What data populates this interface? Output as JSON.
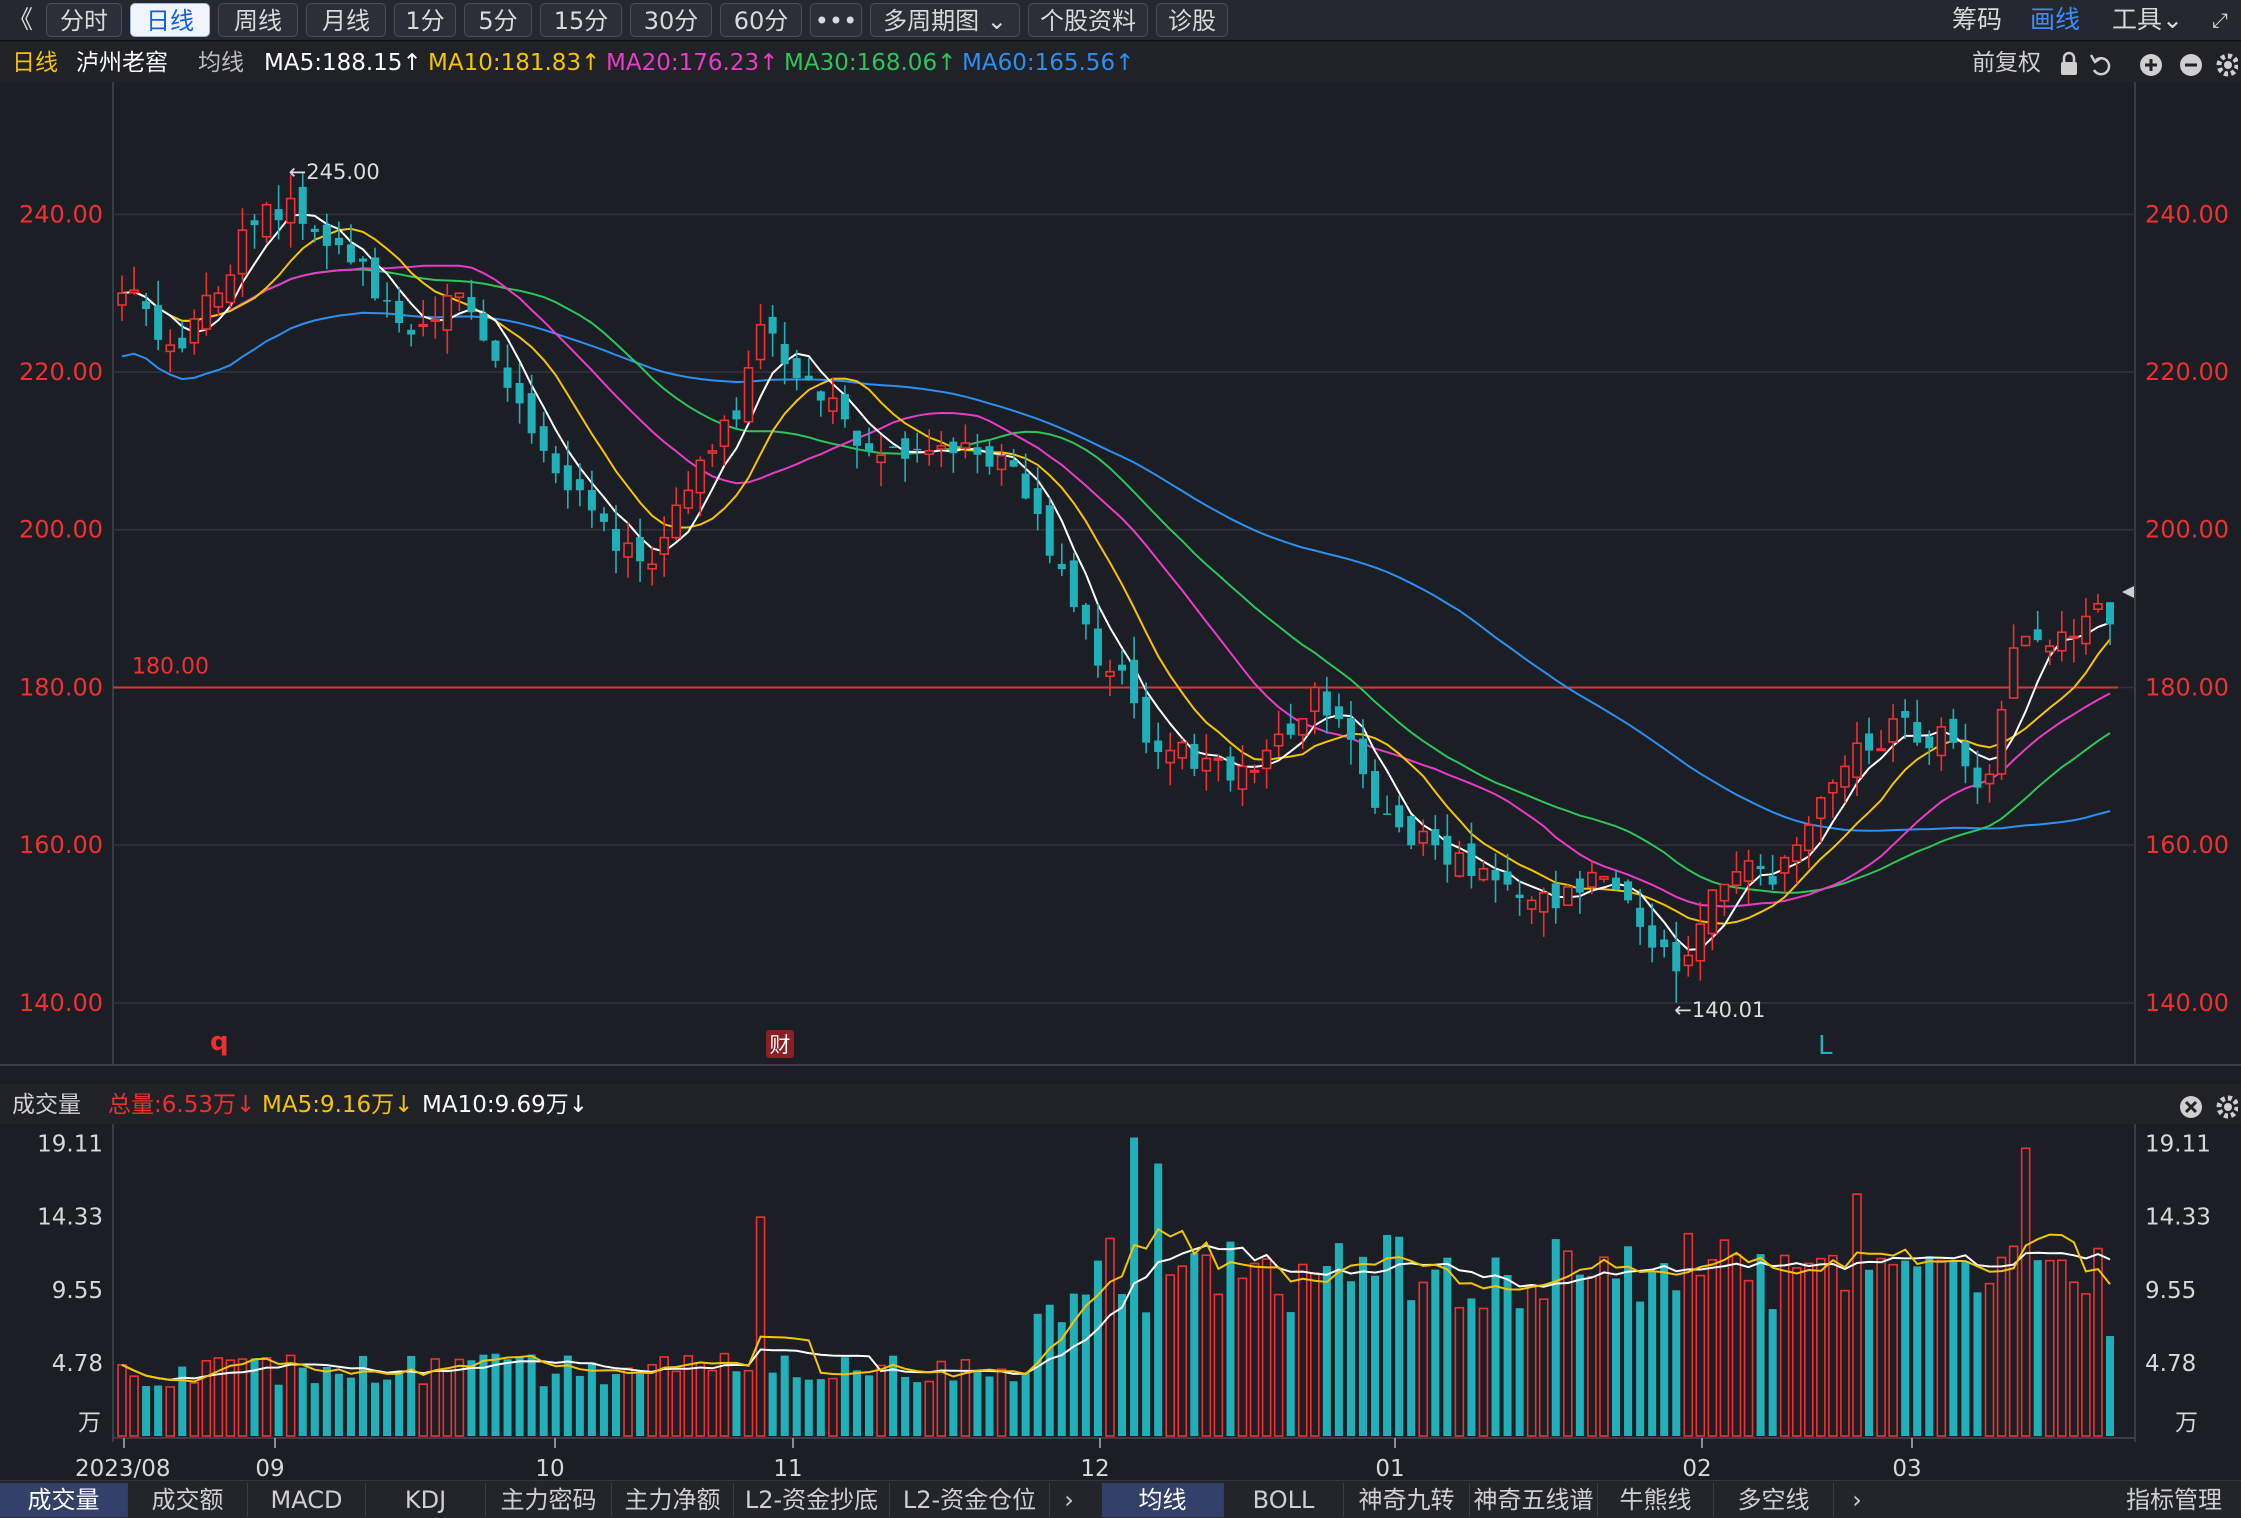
{
  "toolbar": {
    "back_glyph": "《",
    "buttons": [
      "分时",
      "日线",
      "周线",
      "月线",
      "1分",
      "5分",
      "15分",
      "30分",
      "60分",
      "•••",
      "多周期图 ⌄",
      "个股资料",
      "诊股"
    ],
    "active_index": 1,
    "right": {
      "chips": "筹码",
      "draw": "画线",
      "tools": "工具⌄",
      "expand": "⤢"
    }
  },
  "info": {
    "period": "日线",
    "stock": "泸州老窖",
    "avg_label": "均线",
    "ma5": "MA5:188.15↑",
    "ma10": "MA10:181.83↑",
    "ma20": "MA20:176.23↑",
    "ma30": "MA30:168.06↑",
    "ma60": "MA60:165.56↑",
    "adjust": "前复权",
    "colors": {
      "ma5": "#ffffff",
      "ma10": "#f5c400",
      "ma20": "#e83cc8",
      "ma30": "#2ec45a",
      "ma60": "#2d8ff0",
      "up": "#f03030",
      "down": "#22b0b8"
    }
  },
  "price_chart": {
    "y_ticks": [
      "240.00",
      "220.00",
      "200.00",
      "180.00",
      "160.00",
      "140.00"
    ],
    "y_range": [
      132.5,
      254.5
    ],
    "hline": {
      "value": 180,
      "label": "180.00"
    },
    "high_label": "←245.00",
    "low_label": "←140.01",
    "markers": {
      "q": "q",
      "cai": "财",
      "L": "L"
    }
  },
  "volume_header": {
    "title": "成交量",
    "total": "总量:6.53万↓",
    "ma5": "MA5:9.16万↓",
    "ma10": "MA10:9.69万↓"
  },
  "volume_chart": {
    "y_ticks": [
      "19.11",
      "14.33",
      "9.55",
      "4.78"
    ],
    "unit": "万",
    "y_range": [
      0,
      19.6
    ]
  },
  "x_labels": [
    "2023/08",
    "09",
    "10",
    "11",
    "12",
    "01",
    "02",
    "03"
  ],
  "bottom_tabs": {
    "left": [
      "成交量",
      "成交额",
      "MACD",
      "KDJ",
      "主力密码",
      "主力净额",
      "L2-资金抄底",
      "L2-资金仓位"
    ],
    "right": [
      "均线",
      "BOLL",
      "神奇九转",
      "神奇五线谱",
      "牛熊线",
      "多空线"
    ],
    "manage": "指标管理",
    "arrow": "›"
  },
  "chart_data": {
    "type": "candlestick",
    "title": "泸州老窖 日线",
    "ylim": [
      132.5,
      254.5
    ],
    "anchors": [
      {
        "i": 0,
        "c": 230
      },
      {
        "i": 5,
        "c": 223
      },
      {
        "i": 8,
        "c": 230
      },
      {
        "i": 10,
        "c": 238
      },
      {
        "i": 14,
        "c": 242
      },
      {
        "i": 17,
        "c": 236
      },
      {
        "i": 20,
        "c": 234
      },
      {
        "i": 22,
        "c": 229
      },
      {
        "i": 25,
        "c": 226
      },
      {
        "i": 28,
        "c": 230
      },
      {
        "i": 30,
        "c": 224
      },
      {
        "i": 32,
        "c": 218
      },
      {
        "i": 35,
        "c": 210
      },
      {
        "i": 38,
        "c": 205
      },
      {
        "i": 40,
        "c": 201
      },
      {
        "i": 43,
        "c": 196
      },
      {
        "i": 45,
        "c": 199
      },
      {
        "i": 47,
        "c": 205
      },
      {
        "i": 49,
        "c": 210
      },
      {
        "i": 51,
        "c": 214
      },
      {
        "i": 53,
        "c": 226
      },
      {
        "i": 55,
        "c": 221
      },
      {
        "i": 57,
        "c": 219
      },
      {
        "i": 60,
        "c": 214
      },
      {
        "i": 62,
        "c": 210
      },
      {
        "i": 65,
        "c": 209
      },
      {
        "i": 67,
        "c": 210
      },
      {
        "i": 70,
        "c": 211
      },
      {
        "i": 72,
        "c": 208
      },
      {
        "i": 74,
        "c": 208
      },
      {
        "i": 76,
        "c": 202
      },
      {
        "i": 78,
        "c": 195
      },
      {
        "i": 80,
        "c": 188
      },
      {
        "i": 82,
        "c": 182
      },
      {
        "i": 84,
        "c": 178
      },
      {
        "i": 85,
        "c": 173
      },
      {
        "i": 87,
        "c": 172
      },
      {
        "i": 90,
        "c": 171
      },
      {
        "i": 93,
        "c": 170
      },
      {
        "i": 95,
        "c": 172
      },
      {
        "i": 97,
        "c": 174
      },
      {
        "i": 99,
        "c": 180
      },
      {
        "i": 101,
        "c": 176
      },
      {
        "i": 103,
        "c": 169
      },
      {
        "i": 105,
        "c": 164
      },
      {
        "i": 107,
        "c": 160
      },
      {
        "i": 109,
        "c": 160
      },
      {
        "i": 111,
        "c": 159
      },
      {
        "i": 113,
        "c": 157
      },
      {
        "i": 115,
        "c": 155
      },
      {
        "i": 117,
        "c": 153
      },
      {
        "i": 119,
        "c": 152
      },
      {
        "i": 121,
        "c": 154
      },
      {
        "i": 123,
        "c": 156
      },
      {
        "i": 125,
        "c": 153
      },
      {
        "i": 127,
        "c": 147
      },
      {
        "i": 129,
        "c": 144
      },
      {
        "i": 130,
        "c": 146
      },
      {
        "i": 131,
        "c": 150
      },
      {
        "i": 133,
        "c": 155
      },
      {
        "i": 135,
        "c": 158
      },
      {
        "i": 137,
        "c": 155
      },
      {
        "i": 139,
        "c": 160
      },
      {
        "i": 141,
        "c": 166
      },
      {
        "i": 143,
        "c": 170
      },
      {
        "i": 145,
        "c": 172
      },
      {
        "i": 147,
        "c": 176
      },
      {
        "i": 149,
        "c": 173
      },
      {
        "i": 151,
        "c": 175
      },
      {
        "i": 153,
        "c": 170
      },
      {
        "i": 155,
        "c": 169
      },
      {
        "i": 157,
        "c": 185
      },
      {
        "i": 159,
        "c": 186
      },
      {
        "i": 161,
        "c": 187
      },
      {
        "i": 163,
        "c": 189
      },
      {
        "i": 165,
        "c": 188
      }
    ],
    "ma_now": {
      "ma5": 188.15,
      "ma10": 181.83,
      "ma20": 176.23,
      "ma30": 168.06,
      "ma60": 165.56
    },
    "volume_unit": "万",
    "volume_now": {
      "total": 6.53,
      "ma5": 9.16,
      "ma10": 9.69
    },
    "y_ticks_price": [
      240,
      220,
      200,
      180,
      160,
      140
    ],
    "y_ticks_volume": [
      19.11,
      14.33,
      9.55,
      4.78
    ],
    "x_labels": [
      "2023/08",
      "09",
      "10",
      "11",
      "12",
      "01",
      "02",
      "03"
    ]
  }
}
